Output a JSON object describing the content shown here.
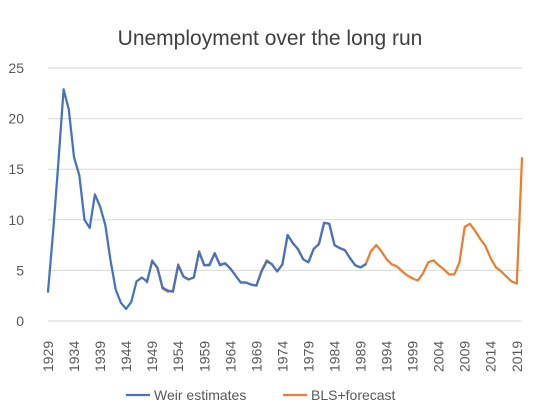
{
  "chart_data": {
    "type": "line",
    "title": "Unemployment over the long run",
    "xlabel": "",
    "ylabel": "",
    "x_tick_labels": [
      "1929",
      "1934",
      "1939",
      "1944",
      "1949",
      "1954",
      "1959",
      "1964",
      "1969",
      "1974",
      "1979",
      "1984",
      "1989",
      "1994",
      "1999",
      "2004",
      "2009",
      "2014",
      "2019"
    ],
    "y_tick_labels": [
      "0",
      "5",
      "10",
      "15",
      "20",
      "25"
    ],
    "ylim": [
      0,
      25
    ],
    "xlim": [
      1929,
      2020
    ],
    "grid": "horizontal",
    "legend_position": "bottom",
    "series": [
      {
        "name": "Weir estimates",
        "color": "#4472C4",
        "x": [
          1929,
          1930,
          1931,
          1932,
          1933,
          1934,
          1935,
          1936,
          1937,
          1938,
          1939,
          1940,
          1941,
          1942,
          1943,
          1944,
          1945,
          1946,
          1947,
          1948,
          1949,
          1950,
          1951,
          1952,
          1953,
          1954,
          1955,
          1956,
          1957,
          1958,
          1959,
          1960,
          1961,
          1962,
          1963,
          1964,
          1965,
          1966,
          1967,
          1968,
          1969,
          1970,
          1971,
          1972,
          1973,
          1974,
          1975,
          1976,
          1977,
          1978,
          1979,
          1980,
          1981,
          1982,
          1983,
          1984,
          1985,
          1986,
          1987,
          1988,
          1989,
          1990
        ],
        "y": [
          2.9,
          8.9,
          15.7,
          22.9,
          20.9,
          16.2,
          14.4,
          10.0,
          9.2,
          12.5,
          11.3,
          9.5,
          6.0,
          3.1,
          1.8,
          1.2,
          1.9,
          3.9,
          4.3,
          3.9,
          5.9,
          5.3,
          3.3,
          3.0,
          2.9,
          5.5,
          4.4,
          4.1,
          4.3,
          6.8,
          5.5,
          5.5,
          6.7,
          5.5,
          5.7,
          5.2,
          4.5,
          3.8,
          3.8,
          3.6,
          3.5,
          4.9,
          5.9,
          5.6,
          4.9,
          5.6,
          8.5,
          7.7,
          7.1,
          6.1,
          5.8,
          7.1,
          7.6,
          9.7,
          9.6,
          7.5,
          7.2,
          7.0,
          6.2,
          5.5,
          5.3,
          5.6
        ]
      },
      {
        "name": "BLS+forecast",
        "color": "#ED7D31",
        "x": [
          1948,
          1949,
          1950,
          1951,
          1952,
          1953,
          1954,
          1955,
          1956,
          1957,
          1958,
          1959,
          1960,
          1961,
          1962,
          1963,
          1964,
          1965,
          1966,
          1967,
          1968,
          1969,
          1970,
          1971,
          1972,
          1973,
          1974,
          1975,
          1976,
          1977,
          1978,
          1979,
          1980,
          1981,
          1982,
          1983,
          1984,
          1985,
          1986,
          1987,
          1988,
          1989,
          1990,
          1991,
          1992,
          1993,
          1994,
          1995,
          1996,
          1997,
          1998,
          1999,
          2000,
          2001,
          2002,
          2003,
          2004,
          2005,
          2006,
          2007,
          2008,
          2009,
          2010,
          2011,
          2012,
          2013,
          2014,
          2015,
          2016,
          2017,
          2018,
          2019,
          2020
        ],
        "y": [
          3.8,
          6.0,
          5.2,
          3.2,
          2.9,
          3.0,
          5.6,
          4.4,
          4.1,
          4.3,
          6.9,
          5.5,
          5.6,
          6.7,
          5.6,
          5.7,
          5.2,
          4.5,
          3.8,
          3.8,
          3.6,
          3.5,
          5.0,
          6.0,
          5.6,
          4.9,
          5.6,
          8.5,
          7.7,
          7.1,
          6.1,
          5.8,
          7.1,
          7.6,
          9.7,
          9.6,
          7.5,
          7.2,
          7.0,
          6.2,
          5.5,
          5.3,
          5.6,
          6.9,
          7.5,
          6.9,
          6.1,
          5.6,
          5.4,
          4.9,
          4.5,
          4.2,
          4.0,
          4.7,
          5.8,
          6.0,
          5.5,
          5.1,
          4.6,
          4.6,
          5.8,
          9.3,
          9.6,
          8.9,
          8.1,
          7.4,
          6.2,
          5.3,
          4.9,
          4.4,
          3.9,
          3.7,
          16.1
        ]
      }
    ]
  }
}
